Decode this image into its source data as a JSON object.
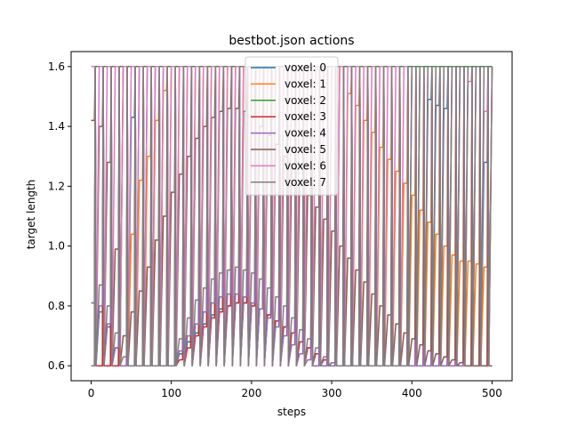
{
  "chart_data": {
    "type": "line",
    "title": "bestbot.json actions",
    "xlabel": "steps",
    "ylabel": "target length",
    "xlim": [
      -25,
      525
    ],
    "ylim": [
      0.55,
      1.65
    ],
    "xticks": [
      0,
      100,
      200,
      300,
      400,
      500
    ],
    "yticks": [
      0.6,
      0.8,
      1.0,
      1.2,
      1.4,
      1.6
    ],
    "xtick_labels": [
      "0",
      "100",
      "200",
      "300",
      "400",
      "500"
    ],
    "ytick_labels": [
      "0.6",
      "0.8",
      "1.0",
      "1.2",
      "1.4",
      "1.6"
    ],
    "grid": false,
    "legend_position": "top-center",
    "period": 10,
    "series": [
      {
        "name": "voxel: 0",
        "color": "#1f77b4",
        "x": [
          0,
          10,
          20,
          30,
          40,
          50,
          60,
          70,
          80,
          90,
          100,
          110,
          120,
          130,
          140,
          150,
          160,
          170,
          180,
          190,
          200,
          210,
          220,
          230,
          240,
          250,
          260,
          270,
          280,
          290,
          300,
          310,
          320,
          330,
          340,
          350,
          360,
          370,
          380,
          390,
          400,
          410,
          420,
          430,
          440,
          450,
          460,
          470,
          480,
          490,
          500
        ],
        "y": [
          0.81,
          0.78,
          0.73,
          0.66,
          1.6,
          1.43,
          1.6,
          1.6,
          1.6,
          1.6,
          0.6,
          0.64,
          0.68,
          0.71,
          0.74,
          0.77,
          0.79,
          0.8,
          0.81,
          0.81,
          0.8,
          0.79,
          0.77,
          0.75,
          0.73,
          0.71,
          0.68,
          0.66,
          0.64,
          0.62,
          0.61,
          0.6,
          0.6,
          0.6,
          0.6,
          0.6,
          0.6,
          0.6,
          0.6,
          0.6,
          1.6,
          1.6,
          1.49,
          1.47,
          1.46,
          1.6,
          1.6,
          1.6,
          1.6,
          1.28,
          1.6
        ]
      },
      {
        "name": "voxel: 1",
        "color": "#ff7f0e",
        "x": [
          0,
          10,
          20,
          30,
          40,
          50,
          60,
          70,
          80,
          90,
          100,
          110,
          120,
          130,
          140,
          150,
          160,
          170,
          180,
          190,
          200,
          210,
          220,
          230,
          240,
          250,
          260,
          270,
          280,
          290,
          300,
          310,
          320,
          330,
          340,
          350,
          360,
          370,
          380,
          390,
          400,
          410,
          420,
          430,
          440,
          450,
          460,
          470,
          480,
          490,
          500
        ],
        "y": [
          0.6,
          0.6,
          0.6,
          0.6,
          1.6,
          1.04,
          1.22,
          1.3,
          1.42,
          1.52,
          1.6,
          1.6,
          1.6,
          1.6,
          1.6,
          1.6,
          1.6,
          1.6,
          1.6,
          1.6,
          1.6,
          1.6,
          1.6,
          1.6,
          1.6,
          1.6,
          1.6,
          1.6,
          1.6,
          1.6,
          1.6,
          1.6,
          1.51,
          1.47,
          1.42,
          1.38,
          1.33,
          1.29,
          1.25,
          1.21,
          1.17,
          1.12,
          1.08,
          1.04,
          1.0,
          0.97,
          0.95,
          0.95,
          0.94,
          0.93,
          1.6
        ]
      },
      {
        "name": "voxel: 2",
        "color": "#2ca02c",
        "x": [
          0,
          100,
          200,
          300,
          400,
          460,
          470,
          480,
          490,
          500
        ],
        "y": [
          1.6,
          1.6,
          1.6,
          1.6,
          1.6,
          1.6,
          1.6,
          1.6,
          1.6,
          1.6
        ]
      },
      {
        "name": "voxel: 3",
        "color": "#d62728",
        "x": [
          0,
          10,
          20,
          30,
          40,
          50,
          60,
          70,
          80,
          90,
          100,
          110,
          120,
          130,
          140,
          150,
          160,
          170,
          180,
          190,
          200,
          210,
          220,
          230,
          240,
          250,
          260,
          270,
          280,
          290,
          300,
          310,
          320,
          330,
          340,
          350,
          360,
          370,
          380,
          390,
          400,
          410,
          420,
          430,
          440,
          450,
          460,
          470,
          480,
          490,
          500
        ],
        "y": [
          0.6,
          0.6,
          0.6,
          0.6,
          0.6,
          0.6,
          0.6,
          0.6,
          0.6,
          0.6,
          0.6,
          0.62,
          0.66,
          0.7,
          0.73,
          0.76,
          0.78,
          0.8,
          0.81,
          0.81,
          0.8,
          0.79,
          0.77,
          0.75,
          0.73,
          0.71,
          0.68,
          0.66,
          0.64,
          0.62,
          0.61,
          0.6,
          0.6,
          0.6,
          0.6,
          0.6,
          0.6,
          0.6,
          0.6,
          0.6,
          0.6,
          0.6,
          0.6,
          0.6,
          0.6,
          0.6,
          0.6,
          0.6,
          0.6,
          0.6,
          0.6
        ]
      },
      {
        "name": "voxel: 4",
        "color": "#9467bd",
        "x": [
          0,
          10,
          20,
          30,
          40,
          50,
          60,
          70,
          80,
          90,
          100,
          110,
          120,
          130,
          140,
          150,
          160,
          170,
          180,
          190,
          200,
          210,
          220,
          230,
          240,
          250,
          260,
          270,
          280,
          290,
          300,
          310,
          320,
          330,
          340,
          350,
          360,
          370,
          380,
          390,
          400,
          410,
          420,
          430,
          440,
          450,
          460,
          470,
          480,
          490,
          500
        ],
        "y": [
          0.81,
          0.8,
          0.74,
          0.66,
          0.6,
          0.6,
          0.6,
          0.6,
          0.6,
          0.6,
          0.6,
          0.65,
          0.7,
          0.74,
          0.78,
          0.81,
          0.83,
          0.84,
          0.84,
          0.83,
          0.81,
          0.79,
          0.76,
          0.73,
          0.7,
          0.67,
          0.64,
          0.62,
          0.6,
          0.6,
          0.6,
          0.6,
          0.6,
          0.6,
          0.6,
          0.6,
          0.6,
          0.6,
          0.6,
          0.6,
          0.6,
          0.6,
          0.6,
          0.6,
          0.6,
          0.6,
          0.6,
          0.6,
          0.6,
          0.6,
          0.6
        ]
      },
      {
        "name": "voxel: 5",
        "color": "#8c564b",
        "x": [
          0,
          10,
          20,
          30,
          40,
          50,
          60,
          70,
          80,
          90,
          100,
          110,
          120,
          130,
          140,
          150,
          160,
          170,
          180,
          190,
          200,
          210,
          220,
          230,
          240,
          250,
          260,
          270,
          280,
          290,
          300,
          310,
          320,
          330,
          340,
          350,
          360,
          370,
          380,
          390,
          400,
          410,
          420,
          430,
          440,
          450,
          460,
          470,
          480,
          490,
          500
        ],
        "y": [
          1.42,
          1.4,
          1.28,
          0.99,
          0.7,
          0.78,
          0.85,
          0.93,
          1.02,
          1.1,
          1.18,
          1.24,
          1.3,
          1.36,
          1.4,
          1.43,
          1.45,
          1.46,
          1.46,
          1.45,
          1.43,
          1.4,
          1.37,
          1.34,
          1.3,
          1.26,
          1.22,
          1.17,
          1.13,
          1.09,
          1.05,
          1.0,
          0.96,
          0.92,
          0.88,
          0.84,
          0.8,
          0.77,
          0.74,
          0.71,
          0.69,
          0.67,
          0.65,
          0.64,
          0.63,
          0.62,
          0.61,
          0.6,
          0.6,
          0.6,
          0.6
        ]
      },
      {
        "name": "voxel: 6",
        "color": "#e377c2",
        "x": [
          0,
          10,
          20,
          30,
          40,
          50,
          60,
          70,
          80,
          90,
          100,
          110,
          120,
          130,
          140,
          150,
          160,
          170,
          180,
          190,
          200,
          210,
          220,
          230,
          240,
          250,
          260,
          270,
          280,
          290,
          300,
          310,
          320,
          330,
          340,
          350,
          360,
          370,
          380,
          390,
          400,
          410,
          420,
          430,
          440,
          450,
          460,
          470,
          480,
          490,
          500
        ],
        "y": [
          1.6,
          1.6,
          1.6,
          1.6,
          1.6,
          1.6,
          1.6,
          1.6,
          1.6,
          1.6,
          1.6,
          1.6,
          1.6,
          1.6,
          1.6,
          1.6,
          1.6,
          1.6,
          1.6,
          1.6,
          1.6,
          1.6,
          1.6,
          1.6,
          1.6,
          1.6,
          1.6,
          1.6,
          1.6,
          1.6,
          1.6,
          1.6,
          1.6,
          1.6,
          1.6,
          1.6,
          1.6,
          1.6,
          1.6,
          1.6,
          1.6,
          1.6,
          1.6,
          1.6,
          1.6,
          1.6,
          1.6,
          1.55,
          1.6,
          1.45,
          1.6
        ]
      },
      {
        "name": "voxel: 7",
        "color": "#7f7f7f",
        "x": [
          0,
          10,
          20,
          30,
          40,
          50,
          60,
          70,
          80,
          90,
          100,
          110,
          120,
          130,
          140,
          150,
          160,
          170,
          180,
          190,
          200,
          210,
          220,
          230,
          240,
          250,
          260,
          270,
          280,
          290,
          300,
          310,
          320,
          330,
          340,
          350,
          360,
          370,
          380,
          390,
          400,
          410,
          420,
          430,
          440,
          450,
          460,
          470,
          480,
          490,
          500
        ],
        "y": [
          0.6,
          0.87,
          0.8,
          0.71,
          0.63,
          0.6,
          0.6,
          0.6,
          0.6,
          0.6,
          0.6,
          0.69,
          0.76,
          0.82,
          0.86,
          0.89,
          0.91,
          0.92,
          0.93,
          0.92,
          0.91,
          0.89,
          0.86,
          0.83,
          0.8,
          0.76,
          0.72,
          0.69,
          0.66,
          0.63,
          0.61,
          0.6,
          0.6,
          0.6,
          0.6,
          0.6,
          0.6,
          0.6,
          0.6,
          0.6,
          1.6,
          1.6,
          1.6,
          1.6,
          1.6,
          1.6,
          1.6,
          1.6,
          1.6,
          1.6,
          1.6
        ]
      }
    ]
  }
}
